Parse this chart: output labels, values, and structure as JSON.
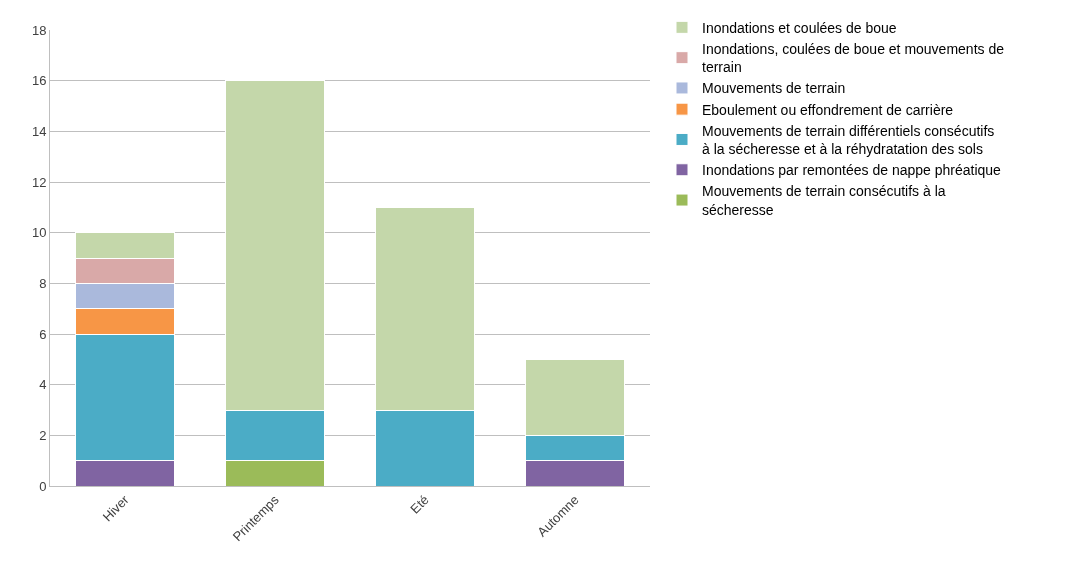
{
  "chart_data": {
    "type": "bar",
    "stacked": true,
    "categories": [
      "Hiver",
      "Printemps",
      "Eté",
      "Automne"
    ],
    "series": [
      {
        "name": "Mouvements de terrain consécutifs à la sécheresse",
        "color": "#9bbb59",
        "values": [
          0,
          1,
          0,
          0
        ]
      },
      {
        "name": "Inondations par remontées de nappe phréatique",
        "color": "#8064a2",
        "values": [
          1,
          0,
          0,
          1
        ]
      },
      {
        "name": "Mouvements de terrain différentiels consécutifs à la sécheresse et à la réhydratation des sols",
        "color": "#4bacc6",
        "values": [
          5,
          2,
          3,
          1
        ]
      },
      {
        "name": "Eboulement ou effondrement de carrière",
        "color": "#f79646",
        "values": [
          1,
          0,
          0,
          0
        ]
      },
      {
        "name": "Mouvements de terrain",
        "color": "#aab9dc",
        "values": [
          1,
          0,
          0,
          0
        ]
      },
      {
        "name": "Inondations, coulées de boue et mouvements de terrain",
        "color": "#d9a9a8",
        "values": [
          1,
          0,
          0,
          0
        ]
      },
      {
        "name": "Inondations et coulées de boue",
        "color": "#c4d7aa",
        "values": [
          1,
          13,
          8,
          3
        ]
      }
    ],
    "ylim": [
      0,
      18
    ],
    "yticks": [
      0,
      2,
      4,
      6,
      8,
      10,
      12,
      14,
      16,
      18
    ],
    "grid": "y",
    "legend": "right"
  }
}
